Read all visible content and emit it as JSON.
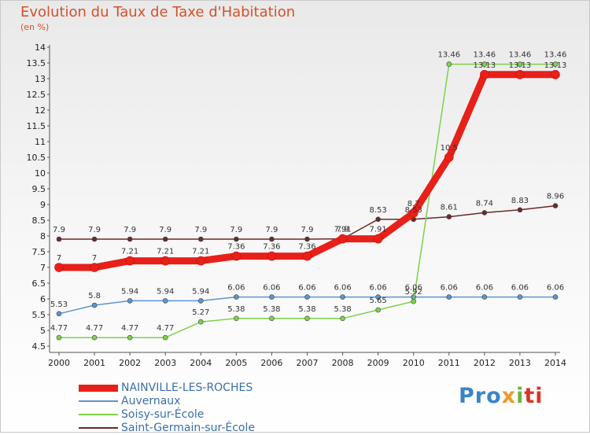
{
  "chart_data": {
    "type": "line",
    "title": "Evolution du Taux de Taxe d'Habitation",
    "subtitle": "(en %)",
    "x": [
      "2000",
      "2001",
      "2002",
      "2003",
      "2004",
      "2005",
      "2006",
      "2007",
      "2008",
      "2009",
      "2010",
      "2011",
      "2012",
      "2013",
      "2014"
    ],
    "ylim": [
      4.5,
      14
    ],
    "yticks": [
      "4.5",
      "5",
      "5.5",
      "6",
      "6.5",
      "7",
      "7.5",
      "8",
      "8.5",
      "9",
      "9.5",
      "10",
      "10.5",
      "11",
      "11.5",
      "12",
      "12.5",
      "13",
      "13.5",
      "14"
    ],
    "grid": false,
    "legend_position": "bottom-left",
    "series": [
      {
        "name": "NAINVILLE-LES-ROCHES",
        "color": "#e8201a",
        "values": [
          7,
          7,
          7.21,
          7.21,
          7.21,
          7.36,
          7.36,
          7.36,
          7.91,
          7.91,
          8.73,
          10.5,
          13.13,
          13.13,
          13.13
        ],
        "labels": [
          "7",
          "7",
          "7.21",
          "7.21",
          "7.21",
          "7.36",
          "7.36",
          "7.36",
          "7.9",
          "7.91",
          "8.7",
          "10.5",
          "13.13",
          "13.13",
          "13.13"
        ]
      },
      {
        "name": "Auvernaux",
        "color": "#5b95cf",
        "values": [
          5.53,
          5.8,
          5.94,
          5.94,
          5.94,
          6.06,
          6.06,
          6.06,
          6.06,
          6.06,
          6.06,
          6.06,
          6.06,
          6.06,
          6.06
        ],
        "labels": [
          "5.53",
          "5.8",
          "5.94",
          "5.94",
          "5.94",
          "6.06",
          "6.06",
          "6.06",
          "6.06",
          "6.06",
          "6.06",
          "6.06",
          "6.06",
          "6.06",
          "6.06"
        ]
      },
      {
        "name": "Soisy-sur-École",
        "color": "#7ed14b",
        "values": [
          4.77,
          4.77,
          4.77,
          4.77,
          5.27,
          5.38,
          5.38,
          5.38,
          5.38,
          5.65,
          5.92,
          13.46,
          13.46,
          13.46,
          13.46
        ],
        "labels": [
          "4.77",
          "4.77",
          "4.77",
          "4.77",
          "5.27",
          "5.38",
          "5.38",
          "5.38",
          "5.38",
          "5.65",
          "5.92",
          "13.46",
          "13.46",
          "13.46",
          "13.46"
        ]
      },
      {
        "name": "Saint-Germain-sur-École",
        "color": "#6b2a2a",
        "values": [
          7.9,
          7.9,
          7.9,
          7.9,
          7.9,
          7.9,
          7.9,
          7.9,
          7.91,
          8.53,
          8.53,
          8.61,
          8.74,
          8.83,
          8.96
        ],
        "labels": [
          "7.9",
          "7.9",
          "7.9",
          "7.9",
          "7.9",
          "7.9",
          "7.9",
          "7.9",
          "7.91",
          "8.53",
          "8.53",
          "8.61",
          "8.74",
          "8.83",
          "8.96"
        ]
      }
    ]
  },
  "logo": {
    "part1": "Pro",
    "part2": "x",
    "part3": "i",
    "part4": "ti"
  }
}
